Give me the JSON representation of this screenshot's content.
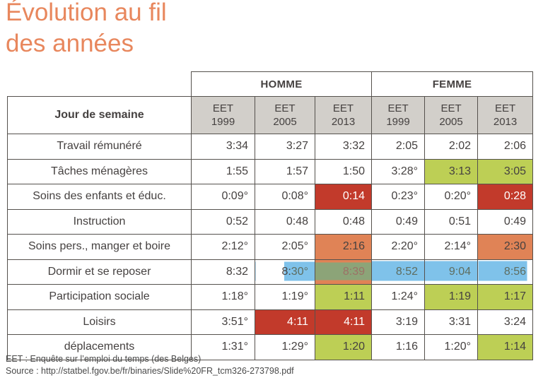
{
  "title": {
    "line1": "Évolution au fil",
    "line2": "des années"
  },
  "table": {
    "corner_label": "Jour de semaine",
    "group_headers": [
      "HOMME",
      "FEMME"
    ],
    "columns": [
      {
        "group": "HOMME",
        "survey": "EET",
        "year": "1999"
      },
      {
        "group": "HOMME",
        "survey": "EET",
        "year": "2005"
      },
      {
        "group": "HOMME",
        "survey": "EET",
        "year": "2013"
      },
      {
        "group": "FEMME",
        "survey": "EET",
        "year": "1999"
      },
      {
        "group": "FEMME",
        "survey": "EET",
        "year": "2005"
      },
      {
        "group": "FEMME",
        "survey": "EET",
        "year": "2013"
      }
    ],
    "rows": [
      {
        "label": "Travail rémunéré",
        "cells": [
          {
            "v": "3:34"
          },
          {
            "v": "3:27"
          },
          {
            "v": "3:32"
          },
          {
            "v": "2:05"
          },
          {
            "v": "2:02"
          },
          {
            "v": "2:06"
          }
        ]
      },
      {
        "label": "Tâches ménagères",
        "cells": [
          {
            "v": "1:55"
          },
          {
            "v": "1:57"
          },
          {
            "v": "1:50"
          },
          {
            "v": "3:28°"
          },
          {
            "v": "3:13",
            "hl": "green"
          },
          {
            "v": "3:05",
            "hl": "green"
          }
        ]
      },
      {
        "label": "Soins des enfants et éduc.",
        "cells": [
          {
            "v": "0:09°"
          },
          {
            "v": "0:08°"
          },
          {
            "v": "0:14",
            "hl": "red"
          },
          {
            "v": "0:23°"
          },
          {
            "v": "0:20°"
          },
          {
            "v": "0:28",
            "hl": "red"
          }
        ]
      },
      {
        "label": "Instruction",
        "cells": [
          {
            "v": "0:52"
          },
          {
            "v": "0:48"
          },
          {
            "v": "0:48"
          },
          {
            "v": "0:49"
          },
          {
            "v": "0:51"
          },
          {
            "v": "0:49"
          }
        ]
      },
      {
        "label": "Soins pers., manger et boire",
        "cells": [
          {
            "v": "2:12°"
          },
          {
            "v": "2:05°"
          },
          {
            "v": "2:16",
            "hl": "orange"
          },
          {
            "v": "2:20°"
          },
          {
            "v": "2:14°"
          },
          {
            "v": "2:30",
            "hl": "orange"
          }
        ]
      },
      {
        "label": "Dormir et se reposer",
        "cells": [
          {
            "v": "8:32"
          },
          {
            "v": "8:30°",
            "hl": "blue-partial",
            "split": [
              "8:",
              "30°"
            ]
          },
          {
            "v": "8:39",
            "hl": "blue-over-orange"
          },
          {
            "v": "8:52",
            "hl": "blue"
          },
          {
            "v": "9:04",
            "hl": "blue"
          },
          {
            "v": "8:56",
            "hl": "blue-end"
          }
        ]
      },
      {
        "label": "Participation sociale",
        "cells": [
          {
            "v": "1:18°"
          },
          {
            "v": "1:19°"
          },
          {
            "v": "1:11",
            "hl": "green"
          },
          {
            "v": "1:24°"
          },
          {
            "v": "1:19",
            "hl": "green"
          },
          {
            "v": "1:17",
            "hl": "green"
          }
        ]
      },
      {
        "label": "Loisirs",
        "cells": [
          {
            "v": "3:51°"
          },
          {
            "v": "4:11",
            "hl": "red"
          },
          {
            "v": "4:11",
            "hl": "red"
          },
          {
            "v": "3:19"
          },
          {
            "v": "3:31"
          },
          {
            "v": "3:24"
          }
        ]
      },
      {
        "label": "déplacements",
        "cells": [
          {
            "v": "1:31°"
          },
          {
            "v": "1:29°"
          },
          {
            "v": "1:20",
            "hl": "green"
          },
          {
            "v": "1:16"
          },
          {
            "v": "1:20°"
          },
          {
            "v": "1:14",
            "hl": "green"
          }
        ]
      }
    ]
  },
  "footnotes": [
    "EET : Enquête sur l’emploi du temps (des Belges)",
    "Source : http://statbel.fgov.be/fr/binaries/Slide%20FR_tcm326-273798.pdf"
  ],
  "colors": {
    "title": "#E8875D",
    "border": "#55514D",
    "header_bg": "#D2CFCA",
    "text": "#454140",
    "highlight_red": "#C23A2B",
    "highlight_green": "#BDCF55",
    "highlight_orange": "#E08356",
    "highlight_blue": "#7FC2EA",
    "highlight_olive": "#8CA478"
  }
}
